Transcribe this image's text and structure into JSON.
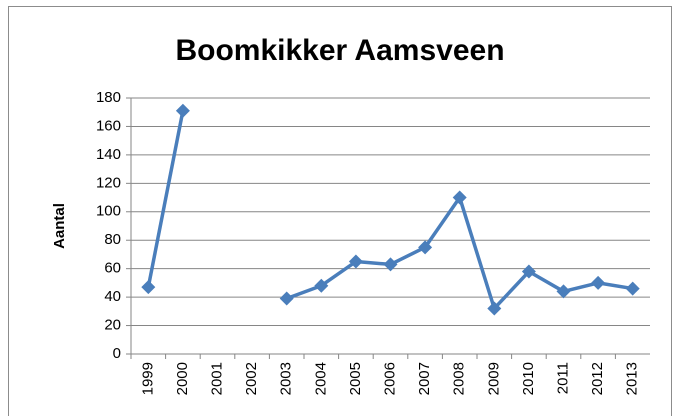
{
  "chart_data": {
    "type": "line",
    "title": "Boomkikker Aamsveen",
    "ylabel": "Aantal",
    "categories": [
      "1999",
      "2000",
      "2001",
      "2002",
      "2003",
      "2004",
      "2005",
      "2006",
      "2007",
      "2008",
      "2009",
      "2010",
      "2011",
      "2012",
      "2013"
    ],
    "series": [
      {
        "name": "Aantal",
        "color": "#4a7ebb",
        "values": [
          47,
          171,
          null,
          null,
          39,
          48,
          65,
          63,
          75,
          110,
          32,
          58,
          44,
          50,
          46
        ]
      }
    ],
    "ylim": [
      0,
      180
    ],
    "yticks": [
      0,
      20,
      40,
      60,
      80,
      100,
      120,
      140,
      160,
      180
    ],
    "grid": true
  }
}
